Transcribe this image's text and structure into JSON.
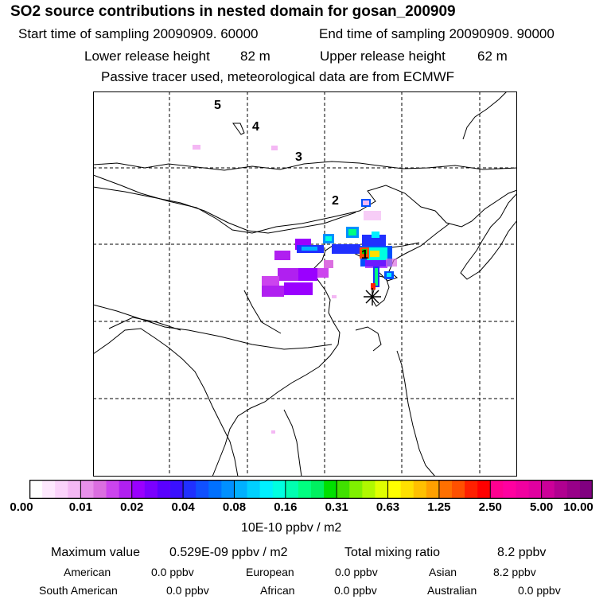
{
  "title": "SO2 source contributions in nested domain for gosan_200909",
  "sampling": {
    "start_label": "Start time of sampling 20090909. 60000",
    "end_label": "End time of sampling 20090909. 90000"
  },
  "release": {
    "lower_label": "Lower release height",
    "lower_value": "82 m",
    "upper_label": "Upper release height",
    "upper_value": "62 m"
  },
  "note": "Passive tracer used, meteorological data are from ECMWF",
  "map": {
    "day_labels": [
      "5",
      "4",
      "3",
      "2",
      "1"
    ],
    "receptor_marker": "asterisk"
  },
  "colorbar": {
    "tick_labels": [
      "0.00",
      "0.01",
      "0.02",
      "0.04",
      "0.08",
      "0.16",
      "0.31",
      "0.63",
      "1.25",
      "2.50",
      "5.00",
      "10.00"
    ],
    "unit": "10E-10 ppbv / m2",
    "colors": [
      "#ffffff",
      "#fde8fd",
      "#fad2fa",
      "#f4b8f4",
      "#e890ea",
      "#db6ee0",
      "#cc44ee",
      "#b020f0",
      "#9a00ff",
      "#7a00ff",
      "#5a00ff",
      "#3a10ff",
      "#2030ff",
      "#1050ff",
      "#0070ff",
      "#0090ff",
      "#00b0ff",
      "#00d0ff",
      "#00f0ff",
      "#00ffe0",
      "#00ffb0",
      "#00ff80",
      "#00f060",
      "#00e000",
      "#40e000",
      "#80f000",
      "#b0f800",
      "#e0ff00",
      "#ffff00",
      "#ffe000",
      "#ffc000",
      "#ffa000",
      "#ff7000",
      "#ff5000",
      "#ff2000",
      "#ff0000",
      "#ff0090",
      "#ff00a0",
      "#f000a0",
      "#e000a0",
      "#cc0099",
      "#b00090",
      "#980088",
      "#800080"
    ]
  },
  "summary": {
    "max_label": "Maximum value",
    "max_value": "0.529E-09 ppbv / m2",
    "total_label": "Total mixing ratio",
    "total_value": "8.2 ppbv"
  },
  "regions": [
    {
      "name": "American",
      "value": "0.0 ppbv"
    },
    {
      "name": "European",
      "value": "0.0 ppbv"
    },
    {
      "name": "Asian",
      "value": "8.2 ppbv"
    },
    {
      "name": "South American",
      "value": "0.0 ppbv"
    },
    {
      "name": "African",
      "value": "0.0 ppbv"
    },
    {
      "name": "Australian",
      "value": "0.0 ppbv"
    }
  ]
}
